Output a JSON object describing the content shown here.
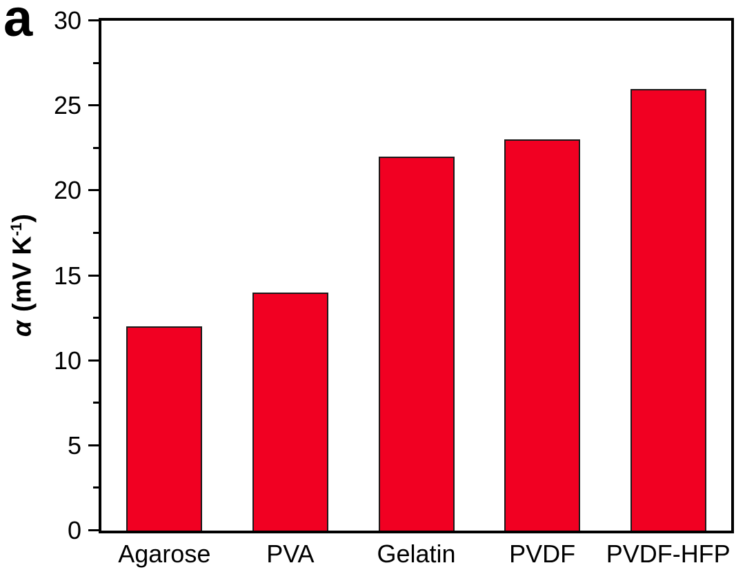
{
  "panel_label": "a",
  "chart_data": {
    "type": "bar",
    "title": "",
    "xlabel": "",
    "ylabel": "α (mV K⁻¹)",
    "ylabel_parts": {
      "symbol": "α",
      "unit": " (mV K",
      "exponent": "-1",
      "close": ")"
    },
    "categories": [
      "Agarose",
      "PVA",
      "Gelatin",
      "PVDF",
      "PVDF-HFP"
    ],
    "values": [
      12,
      14,
      22,
      23,
      26
    ],
    "ylim": [
      0,
      30
    ],
    "yticks": [
      0,
      5,
      10,
      15,
      20,
      25,
      30
    ],
    "minor_yticks": [
      2.5,
      7.5,
      12.5,
      17.5,
      22.5,
      27.5
    ],
    "grid": false,
    "legend_position": "none",
    "bar_color": "#F10022",
    "bar_edge_color": "#1a1a1a",
    "axis_color": "#000000",
    "background_color": "#ffffff"
  }
}
